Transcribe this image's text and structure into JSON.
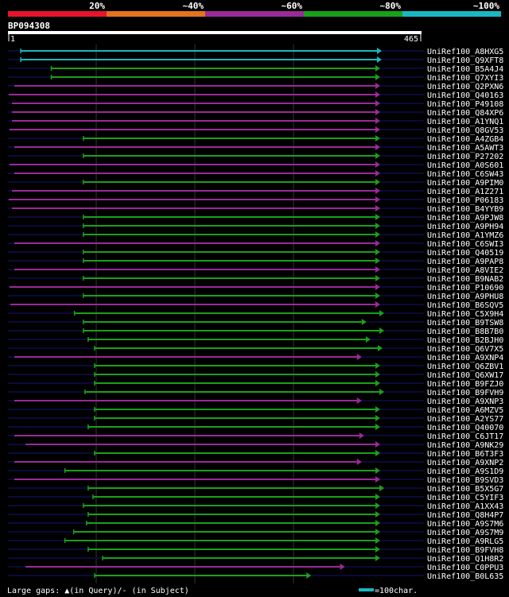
{
  "chart_data": {
    "type": "alignment-overview",
    "query_id": "BP094308",
    "query_length": 465,
    "ruler": {
      "start": "1",
      "end": "465"
    },
    "identity_legend": [
      {
        "label": "20%",
        "color": "#e8142c"
      },
      {
        "label": "",
        "color": "#e3731e"
      },
      {
        "label": "~40%",
        "color": "#9a2a9a"
      },
      {
        "label": "~60%",
        "color": "#9a2a9a"
      },
      {
        "label": "~80%",
        "color": "#1aa01a"
      },
      {
        "label": "~100%",
        "color": "#1ab7c3"
      }
    ],
    "colors": {
      "high": "#1ab7c3",
      "mid": "#1aa01a",
      "low": "#9a2a9a",
      "track": "#0a0a3a",
      "grid": "#333"
    },
    "footer": {
      "gaps_text": "Large gaps: ▲(in Query)/- (in Subject)",
      "scale_text": "=100char."
    },
    "hits": [
      {
        "name": "UniRef100_A8HXG5",
        "start": 16,
        "end": 465,
        "cls": "high"
      },
      {
        "name": "UniRef100_Q9XFT8",
        "start": 16,
        "end": 465,
        "cls": "high"
      },
      {
        "name": "UniRef100_B5A4J4",
        "start": 54,
        "end": 463,
        "cls": "mid"
      },
      {
        "name": "UniRef100_Q7XYI3",
        "start": 54,
        "end": 463,
        "cls": "mid"
      },
      {
        "name": "UniRef100_Q2PXN6",
        "start": 8,
        "end": 463,
        "cls": "low"
      },
      {
        "name": "UniRef100_Q40163",
        "start": 1,
        "end": 463,
        "cls": "low"
      },
      {
        "name": "UniRef100_P49108",
        "start": 5,
        "end": 463,
        "cls": "low"
      },
      {
        "name": "UniRef100_Q84XP6",
        "start": 5,
        "end": 463,
        "cls": "low"
      },
      {
        "name": "UniRef100_A1YNQ1",
        "start": 5,
        "end": 463,
        "cls": "low"
      },
      {
        "name": "UniRef100_Q8GV53",
        "start": 2,
        "end": 463,
        "cls": "low"
      },
      {
        "name": "UniRef100_A4ZGB4",
        "start": 94,
        "end": 463,
        "cls": "mid"
      },
      {
        "name": "UniRef100_A5AWT3",
        "start": 8,
        "end": 463,
        "cls": "low"
      },
      {
        "name": "UniRef100_P27202",
        "start": 94,
        "end": 463,
        "cls": "mid"
      },
      {
        "name": "UniRef100_A0S601",
        "start": 2,
        "end": 463,
        "cls": "low"
      },
      {
        "name": "UniRef100_C6SW43",
        "start": 8,
        "end": 463,
        "cls": "low"
      },
      {
        "name": "UniRef100_A9PIM0",
        "start": 94,
        "end": 463,
        "cls": "mid"
      },
      {
        "name": "UniRef100_A1Z271",
        "start": 5,
        "end": 463,
        "cls": "low"
      },
      {
        "name": "UniRef100_P06183",
        "start": 1,
        "end": 463,
        "cls": "low"
      },
      {
        "name": "UniRef100_B4YYB9",
        "start": 5,
        "end": 463,
        "cls": "low"
      },
      {
        "name": "UniRef100_A9PJW8",
        "start": 94,
        "end": 463,
        "cls": "mid"
      },
      {
        "name": "UniRef100_A9PH94",
        "start": 94,
        "end": 463,
        "cls": "mid"
      },
      {
        "name": "UniRef100_A1YMZ6",
        "start": 94,
        "end": 463,
        "cls": "mid"
      },
      {
        "name": "UniRef100_C6SWI3",
        "start": 8,
        "end": 463,
        "cls": "low"
      },
      {
        "name": "UniRef100_Q40519",
        "start": 94,
        "end": 463,
        "cls": "mid"
      },
      {
        "name": "UniRef100_A9PAP8",
        "start": 94,
        "end": 463,
        "cls": "mid"
      },
      {
        "name": "UniRef100_A8VIE2",
        "start": 8,
        "end": 463,
        "cls": "low"
      },
      {
        "name": "UniRef100_B9NAB2",
        "start": 94,
        "end": 463,
        "cls": "mid"
      },
      {
        "name": "UniRef100_P10690",
        "start": 2,
        "end": 463,
        "cls": "low"
      },
      {
        "name": "UniRef100_A9PHU8",
        "start": 94,
        "end": 463,
        "cls": "mid"
      },
      {
        "name": "UniRef100_B6SQV5",
        "start": 3,
        "end": 463,
        "cls": "low"
      },
      {
        "name": "UniRef100_C5X9H4",
        "start": 83,
        "end": 468,
        "cls": "mid"
      },
      {
        "name": "UniRef100_B9TSW8",
        "start": 94,
        "end": 446,
        "cls": "mid"
      },
      {
        "name": "UniRef100_B8B7B0",
        "start": 94,
        "end": 468,
        "cls": "mid"
      },
      {
        "name": "UniRef100_B2BJH0",
        "start": 100,
        "end": 451,
        "cls": "mid"
      },
      {
        "name": "UniRef100_Q6V7X5",
        "start": 108,
        "end": 466,
        "cls": "mid"
      },
      {
        "name": "UniRef100_A9XNP4",
        "start": 8,
        "end": 440,
        "cls": "low"
      },
      {
        "name": "UniRef100_Q6ZBV1",
        "start": 108,
        "end": 463,
        "cls": "mid"
      },
      {
        "name": "UniRef100_Q6XW17",
        "start": 108,
        "end": 463,
        "cls": "mid"
      },
      {
        "name": "UniRef100_B9FZJ0",
        "start": 108,
        "end": 463,
        "cls": "mid"
      },
      {
        "name": "UniRef100_B9FVH9",
        "start": 96,
        "end": 468,
        "cls": "mid"
      },
      {
        "name": "UniRef100_A9XNP3",
        "start": 8,
        "end": 440,
        "cls": "low"
      },
      {
        "name": "UniRef100_A6MZV5",
        "start": 108,
        "end": 463,
        "cls": "mid"
      },
      {
        "name": "UniRef100_A2YS77",
        "start": 108,
        "end": 463,
        "cls": "mid"
      },
      {
        "name": "UniRef100_Q40070",
        "start": 100,
        "end": 463,
        "cls": "mid"
      },
      {
        "name": "UniRef100_C6JT17",
        "start": 8,
        "end": 443,
        "cls": "low"
      },
      {
        "name": "UniRef100_A9NK29",
        "start": 22,
        "end": 463,
        "cls": "low"
      },
      {
        "name": "UniRef100_B6T3F3",
        "start": 108,
        "end": 463,
        "cls": "mid"
      },
      {
        "name": "UniRef100_A9XNP2",
        "start": 8,
        "end": 440,
        "cls": "low"
      },
      {
        "name": "UniRef100_A9S1D9",
        "start": 71,
        "end": 463,
        "cls": "mid"
      },
      {
        "name": "UniRef100_B9SVD3",
        "start": 8,
        "end": 463,
        "cls": "low"
      },
      {
        "name": "UniRef100_B5X5G7",
        "start": 100,
        "end": 468,
        "cls": "mid"
      },
      {
        "name": "UniRef100_C5YIF3",
        "start": 106,
        "end": 463,
        "cls": "mid"
      },
      {
        "name": "UniRef100_A1XX43",
        "start": 94,
        "end": 463,
        "cls": "mid"
      },
      {
        "name": "UniRef100_Q8H4P7",
        "start": 100,
        "end": 463,
        "cls": "mid"
      },
      {
        "name": "UniRef100_A9S7M6",
        "start": 98,
        "end": 463,
        "cls": "mid"
      },
      {
        "name": "UniRef100_A9S7M9",
        "start": 82,
        "end": 463,
        "cls": "mid"
      },
      {
        "name": "UniRef100_A9RLG5",
        "start": 71,
        "end": 463,
        "cls": "mid"
      },
      {
        "name": "UniRef100_B9FVH8",
        "start": 100,
        "end": 463,
        "cls": "mid"
      },
      {
        "name": "UniRef100_Q1H8R2",
        "start": 118,
        "end": 463,
        "cls": "mid"
      },
      {
        "name": "UniRef100_C0PPU3",
        "start": 22,
        "end": 419,
        "cls": "low"
      },
      {
        "name": "UniRef100_B0L635",
        "start": 108,
        "end": 377,
        "cls": "mid"
      }
    ]
  }
}
